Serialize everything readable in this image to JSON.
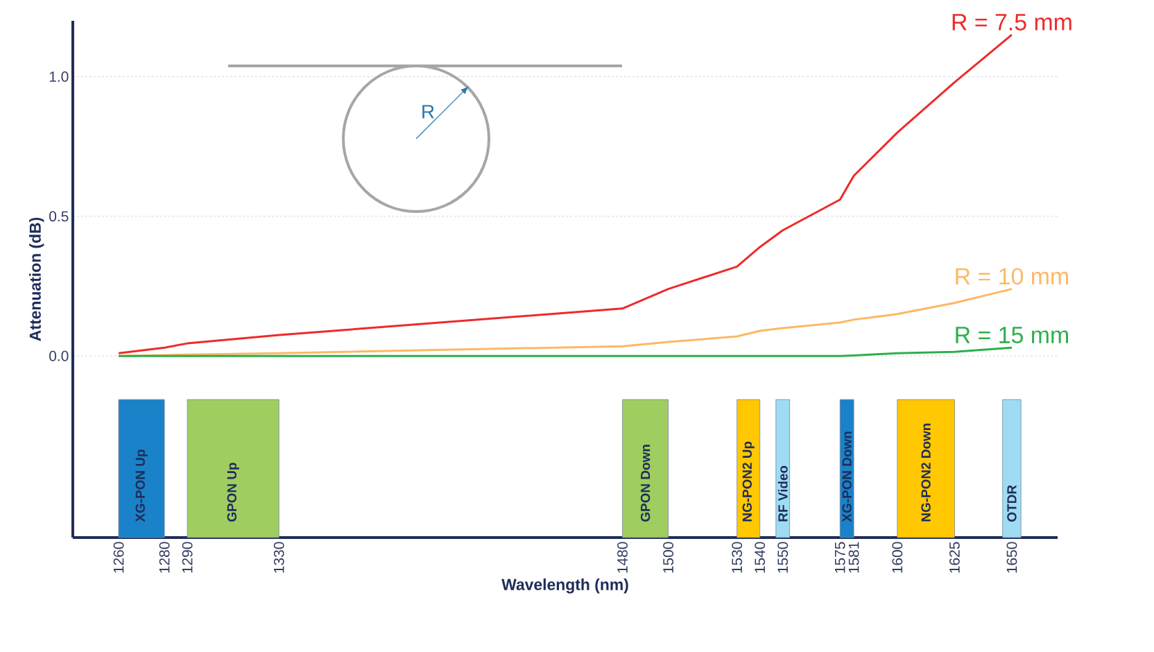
{
  "chart_data": {
    "type": "line",
    "xlabel": "Wavelength (nm)",
    "ylabel": "Attenuation (dB)",
    "xlim": [
      1240,
      1670
    ],
    "ylim": [
      -0.65,
      1.2
    ],
    "xticks": [
      1260,
      1280,
      1290,
      1330,
      1480,
      1500,
      1530,
      1540,
      1550,
      1575,
      1581,
      1600,
      1625,
      1650
    ],
    "yticks": [
      {
        "value": 0,
        "label": "0.0"
      },
      {
        "value": 0.5,
        "label": "0.5"
      },
      {
        "value": 1,
        "label": "1.0"
      }
    ],
    "grid": "y",
    "legend": false,
    "marker": "none",
    "line_style": "solid",
    "x": [
      1260,
      1280,
      1290,
      1330,
      1480,
      1500,
      1530,
      1540,
      1550,
      1575,
      1581,
      1600,
      1625,
      1650
    ],
    "series": [
      {
        "name": "R = 7.5 mm",
        "color": "#ee2a2a",
        "values": [
          0.01,
          0.03,
          0.045,
          0.075,
          0.17,
          0.24,
          0.32,
          0.39,
          0.45,
          0.56,
          0.645,
          0.8,
          0.98,
          1.15
        ]
      },
      {
        "name": "R = 10 mm",
        "color": "#fdb863",
        "values": [
          0,
          0.003,
          0.005,
          0.01,
          0.035,
          0.05,
          0.07,
          0.09,
          0.1,
          0.12,
          0.13,
          0.15,
          0.19,
          0.24
        ]
      },
      {
        "name": "R = 15 mm",
        "color": "#2bb04a",
        "values": [
          0,
          0,
          0,
          0,
          0,
          0,
          0,
          0,
          0,
          0,
          0.002,
          0.01,
          0.015,
          0.03
        ]
      }
    ],
    "bands": [
      {
        "axis": "x",
        "from": 1260,
        "to": 1280,
        "label": "XG-PON Up",
        "color": "#1a82c8"
      },
      {
        "axis": "x",
        "from": 1290,
        "to": 1330,
        "label": "GPON Up",
        "color": "#a0cd60"
      },
      {
        "axis": "x",
        "from": 1480,
        "to": 1500,
        "label": "GPON Down",
        "color": "#a0cd60"
      },
      {
        "axis": "x",
        "from": 1530,
        "to": 1540,
        "label": "NG-PON2 Up",
        "color": "#ffc800"
      },
      {
        "axis": "x",
        "from": 1547,
        "to": 1553,
        "label": "RF Video",
        "color": "#9fdcf4"
      },
      {
        "axis": "x",
        "from": 1575,
        "to": 1581,
        "label": "XG-PON Down",
        "color": "#1a82c8"
      },
      {
        "axis": "x",
        "from": 1600,
        "to": 1625,
        "label": "NG-PON2 Down",
        "color": "#ffc800"
      },
      {
        "axis": "x",
        "from": 1646,
        "to": 1654,
        "label": "OTDR",
        "color": "#9fdcf4"
      }
    ],
    "annotations": [
      "R"
    ]
  }
}
